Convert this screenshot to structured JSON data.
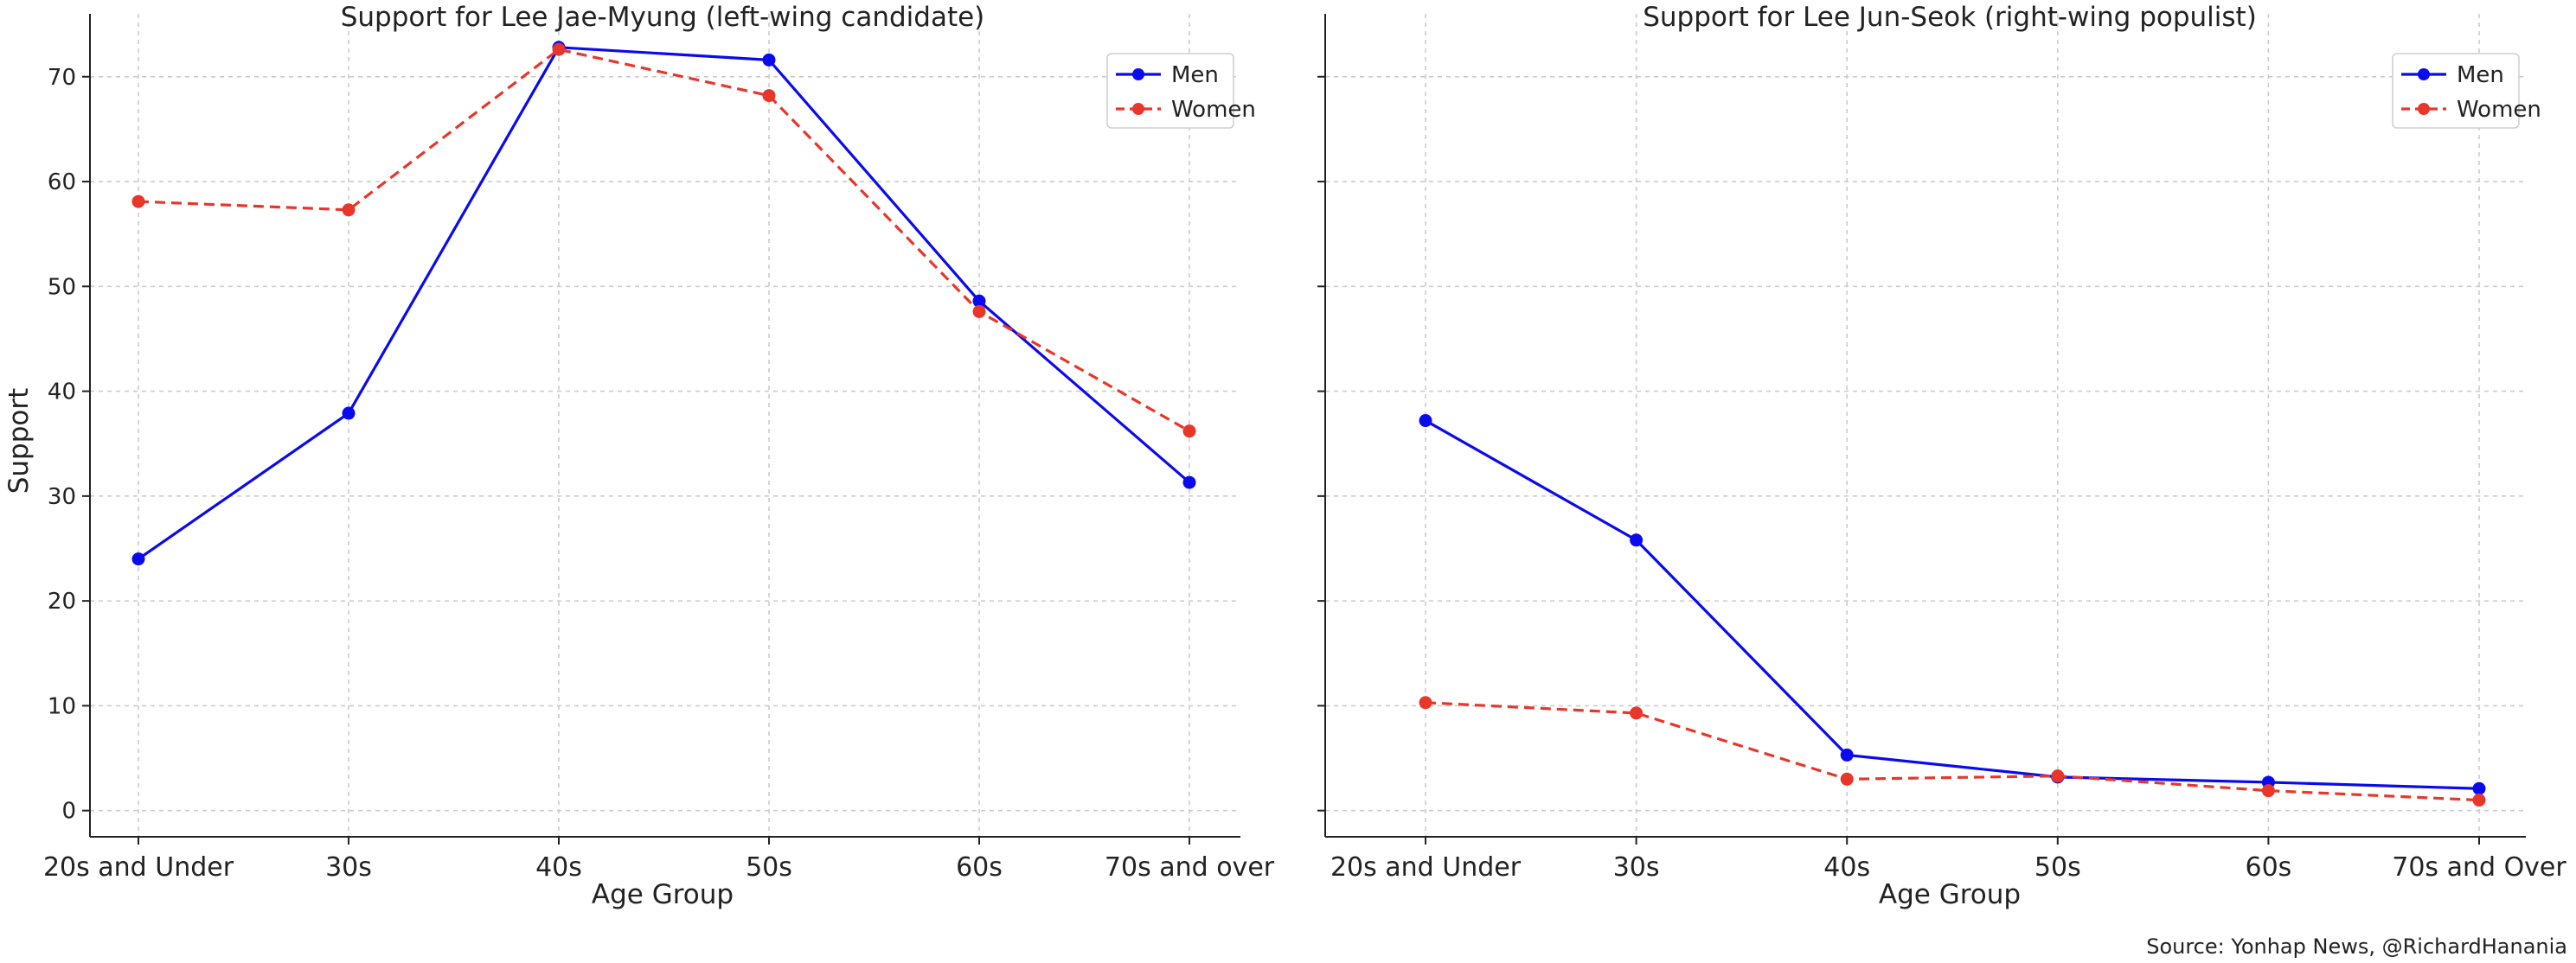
{
  "chart_data": [
    {
      "type": "line",
      "title": "Support for Lee Jae-Myung (left-wing candidate)",
      "xlabel": "Age Group",
      "ylabel": "Support",
      "categories": [
        "20s and Under",
        "30s",
        "40s",
        "50s",
        "60s",
        "70s and over"
      ],
      "ylim": [
        -2.5,
        76
      ],
      "yticks": [
        0,
        10,
        20,
        30,
        40,
        50,
        60,
        70
      ],
      "grid": true,
      "legend_position": "top-right",
      "series": [
        {
          "name": "Men",
          "values": [
            24.0,
            37.9,
            72.8,
            71.6,
            48.6,
            31.3
          ],
          "color": "#0a0aef",
          "style": "solid"
        },
        {
          "name": "Women",
          "values": [
            58.1,
            57.3,
            72.6,
            68.2,
            47.6,
            36.2
          ],
          "color": "#e8362a",
          "style": "dashed"
        }
      ]
    },
    {
      "type": "line",
      "title": "Support for Lee Jun-Seok (right-wing populist)",
      "xlabel": "Age Group",
      "ylabel": "",
      "categories": [
        "20s and Under",
        "30s",
        "40s",
        "50s",
        "60s",
        "70s and Over"
      ],
      "ylim": [
        -2.5,
        76
      ],
      "yticks": [
        0,
        10,
        20,
        30,
        40,
        50,
        60,
        70
      ],
      "grid": true,
      "legend_position": "top-right",
      "series": [
        {
          "name": "Men",
          "values": [
            37.2,
            25.8,
            5.3,
            3.2,
            2.7,
            2.1
          ],
          "color": "#0a0aef",
          "style": "solid"
        },
        {
          "name": "Women",
          "values": [
            10.3,
            9.3,
            3.0,
            3.3,
            1.9,
            1.0
          ],
          "color": "#e8362a",
          "style": "dashed"
        }
      ]
    }
  ],
  "source_note": "Source: Yonhap News, @RichardHanania"
}
